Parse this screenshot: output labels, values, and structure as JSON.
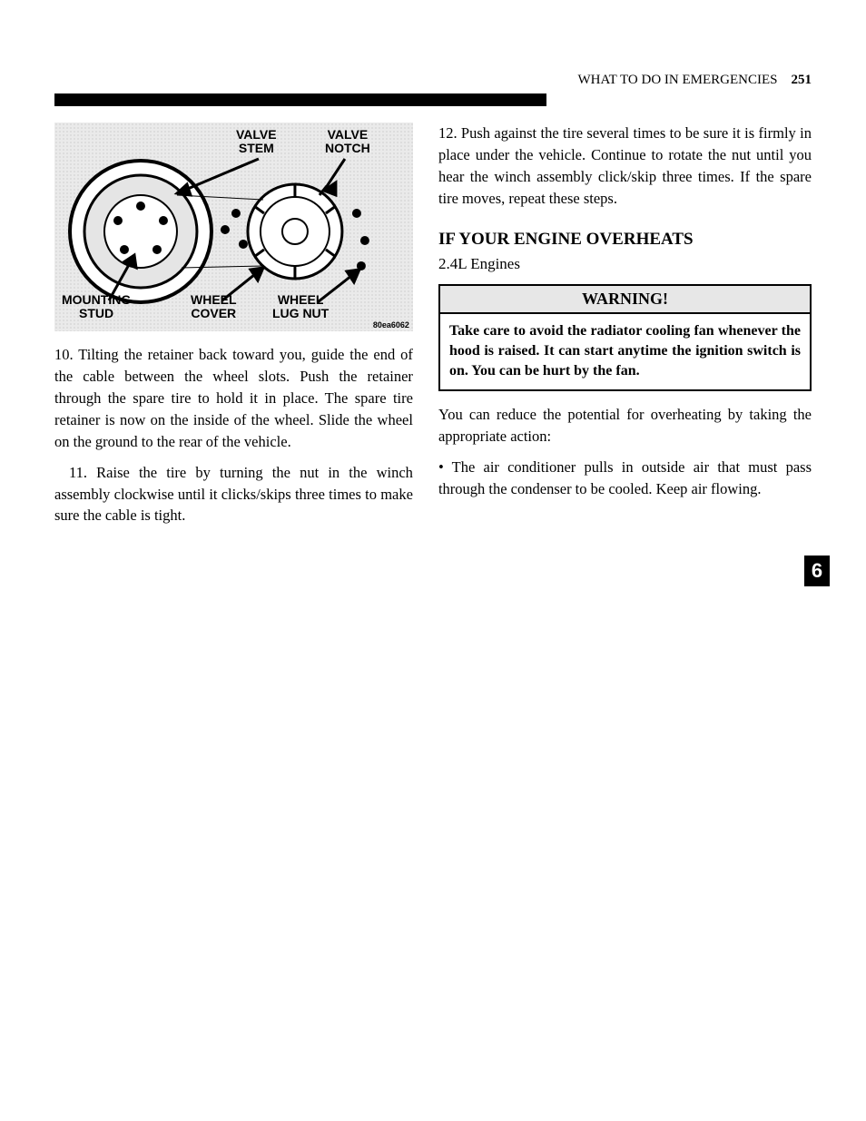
{
  "header": {
    "left": "",
    "right_text": "WHAT TO DO IN EMERGENCIES",
    "page_number": "251"
  },
  "rule_color": "#000000",
  "tab": {
    "number": "6",
    "bg": "#000000",
    "fg": "#ffffff"
  },
  "figure": {
    "type": "diagram",
    "background_color": "#eaeaea",
    "dot_color": "#b5b5b5",
    "label_font_family": "Arial",
    "label_font_size": 14,
    "label_font_weight": 900,
    "stroke": "#000000",
    "stroke_width": 2,
    "labels": {
      "valve_stem": "VALVE\nSTEM",
      "valve_notch": "VALVE\nNOTCH",
      "mounting_stud": "MOUNTING\nSTUD",
      "wheel_cover": "WHEEL\nCOVER",
      "wheel_lug_nut": "WHEEL\nLUG NUT"
    },
    "code": "80ea6062"
  },
  "left_column": {
    "paragraphs": [
      "10. Tilting the retainer back toward you, guide the end of the cable between the wheel slots. Push the retainer through the spare tire to hold it in place. The spare tire retainer is now on the inside of the wheel. Slide the wheel on the ground to the rear of the vehicle.",
      "11. Raise the tire by turning the nut in the winch assembly clockwise until it clicks/skips three times to make sure the cable is tight."
    ]
  },
  "right_column": {
    "paragraphs_top": [
      "12. Push against the tire several times to be sure it is firmly in place under the vehicle. Continue to rotate the nut until you hear the winch assembly click/skip three times. If the spare tire moves, repeat these steps."
    ],
    "heading_h2": "IF YOUR ENGINE OVERHEATS",
    "heading_h3": "2.4L Engines",
    "warning": {
      "title": "WARNING!",
      "body": "Take care to avoid the radiator cooling fan whenever the hood is raised. It can start anytime the ignition switch is on. You can be hurt by the fan.",
      "border_color": "#000000",
      "head_bg": "#e7e7e7"
    },
    "paragraphs_bottom": [
      "You can reduce the potential for overheating by taking the appropriate action:",
      "• The air conditioner pulls in outside air that must pass through the condenser to be cooled. Keep air flowing."
    ]
  },
  "typography": {
    "body_font_family": "Georgia",
    "body_font_size": 16.5,
    "body_line_height": 1.45,
    "heading_font_weight": "bold",
    "warning_head_font_size": 18,
    "warning_body_font_size": 16
  }
}
